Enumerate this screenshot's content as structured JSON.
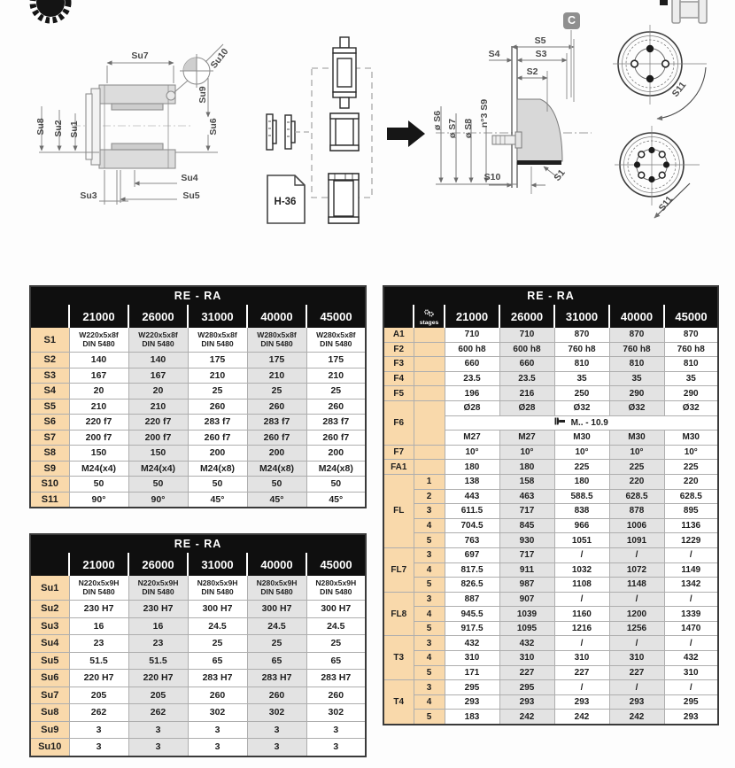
{
  "diagram": {
    "su": {
      "su1": "Su1",
      "su2": "Su2",
      "su3": "Su3",
      "su4": "Su4",
      "su5": "Su5",
      "su6": "Su6",
      "su7": "Su7",
      "su8": "Su8",
      "su9": "Su9",
      "su10": "Su10"
    },
    "s": {
      "badge": "C",
      "s1": "S1",
      "s2": "S2",
      "s3": "S3",
      "s4": "S4",
      "s5": "S5",
      "s6": "ø S6",
      "s7": "ø S7",
      "s8": "ø S8",
      "s9": "n°3 S9",
      "s10": "S10",
      "s11_top": "S11",
      "s11_bottom": "S11"
    },
    "document_label": "H-36"
  },
  "tables": {
    "s": {
      "title": "RE - RA",
      "columns": [
        "21000",
        "26000",
        "31000",
        "40000",
        "45000"
      ],
      "rows": [
        {
          "label": "S1",
          "values": [
            "W220x5x8f\nDIN 5480",
            "W220x5x8f\nDIN 5480",
            "W280x5x8f\nDIN 5480",
            "W280x5x8f\nDIN 5480",
            "W280x5x8f\nDIN 5480"
          ]
        },
        {
          "label": "S2",
          "values": [
            "140",
            "140",
            "175",
            "175",
            "175"
          ]
        },
        {
          "label": "S3",
          "values": [
            "167",
            "167",
            "210",
            "210",
            "210"
          ]
        },
        {
          "label": "S4",
          "values": [
            "20",
            "20",
            "25",
            "25",
            "25"
          ]
        },
        {
          "label": "S5",
          "values": [
            "210",
            "210",
            "260",
            "260",
            "260"
          ]
        },
        {
          "label": "S6",
          "values": [
            "220 f7",
            "220 f7",
            "283 f7",
            "283 f7",
            "283 f7"
          ]
        },
        {
          "label": "S7",
          "values": [
            "200 f7",
            "200 f7",
            "260 f7",
            "260 f7",
            "260 f7"
          ]
        },
        {
          "label": "S8",
          "values": [
            "150",
            "150",
            "200",
            "200",
            "200"
          ]
        },
        {
          "label": "S9",
          "values": [
            "M24(x4)",
            "M24(x4)",
            "M24(x8)",
            "M24(x8)",
            "M24(x8)"
          ]
        },
        {
          "label": "S10",
          "values": [
            "50",
            "50",
            "50",
            "50",
            "50"
          ]
        },
        {
          "label": "S11",
          "values": [
            "90°",
            "90°",
            "45°",
            "45°",
            "45°"
          ]
        }
      ]
    },
    "su": {
      "title": "RE - RA",
      "columns": [
        "21000",
        "26000",
        "31000",
        "40000",
        "45000"
      ],
      "rows": [
        {
          "label": "Su1",
          "values": [
            "N220x5x9H\nDIN 5480",
            "N220x5x9H\nDIN 5480",
            "N280x5x9H\nDIN 5480",
            "N280x5x9H\nDIN 5480",
            "N280x5x9H\nDIN 5480"
          ]
        },
        {
          "label": "Su2",
          "values": [
            "230 H7",
            "230 H7",
            "300 H7",
            "300 H7",
            "300 H7"
          ]
        },
        {
          "label": "Su3",
          "values": [
            "16",
            "16",
            "24.5",
            "24.5",
            "24.5"
          ]
        },
        {
          "label": "Su4",
          "values": [
            "23",
            "23",
            "25",
            "25",
            "25"
          ]
        },
        {
          "label": "Su5",
          "values": [
            "51.5",
            "51.5",
            "65",
            "65",
            "65"
          ]
        },
        {
          "label": "Su6",
          "values": [
            "220 H7",
            "220 H7",
            "283 H7",
            "283 H7",
            "283 H7"
          ]
        },
        {
          "label": "Su7",
          "values": [
            "205",
            "205",
            "260",
            "260",
            "260"
          ]
        },
        {
          "label": "Su8",
          "values": [
            "262",
            "262",
            "302",
            "302",
            "302"
          ]
        },
        {
          "label": "Su9",
          "values": [
            "3",
            "3",
            "3",
            "3",
            "3"
          ]
        },
        {
          "label": "Su10",
          "values": [
            "3",
            "3",
            "3",
            "3",
            "3"
          ]
        }
      ]
    },
    "main": {
      "title": "RE - RA",
      "stages_label": "stages",
      "columns": [
        "21000",
        "26000",
        "31000",
        "40000",
        "45000"
      ],
      "groups": [
        {
          "label": "A1",
          "rows": [
            {
              "stage": "",
              "values": [
                "710",
                "710",
                "870",
                "870",
                "870"
              ]
            }
          ]
        },
        {
          "label": "F2",
          "rows": [
            {
              "stage": "",
              "values": [
                "600 h8",
                "600 h8",
                "760 h8",
                "760 h8",
                "760 h8"
              ]
            }
          ]
        },
        {
          "label": "F3",
          "rows": [
            {
              "stage": "",
              "values": [
                "660",
                "660",
                "810",
                "810",
                "810"
              ]
            }
          ]
        },
        {
          "label": "F4",
          "rows": [
            {
              "stage": "",
              "values": [
                "23.5",
                "23.5",
                "35",
                "35",
                "35"
              ]
            }
          ]
        },
        {
          "label": "F5",
          "rows": [
            {
              "stage": "",
              "values": [
                "196",
                "216",
                "250",
                "290",
                "290"
              ]
            }
          ]
        },
        {
          "label": "F6",
          "f6": true,
          "rows": [
            {
              "values": [
                "Ø28",
                "Ø28",
                "Ø32",
                "Ø32",
                "Ø32"
              ]
            },
            {
              "note": "M.. - 10.9"
            },
            {
              "values": [
                "M27",
                "M27",
                "M30",
                "M30",
                "M30"
              ]
            }
          ]
        },
        {
          "label": "F7",
          "rows": [
            {
              "stage": "",
              "values": [
                "10°",
                "10°",
                "10°",
                "10°",
                "10°"
              ]
            }
          ]
        },
        {
          "label": "FA1",
          "rows": [
            {
              "stage": "",
              "values": [
                "180",
                "180",
                "225",
                "225",
                "225"
              ]
            }
          ]
        },
        {
          "label": "FL",
          "rows": [
            {
              "stage": "1",
              "values": [
                "138",
                "158",
                "180",
                "220",
                "220"
              ]
            },
            {
              "stage": "2",
              "values": [
                "443",
                "463",
                "588.5",
                "628.5",
                "628.5"
              ]
            },
            {
              "stage": "3",
              "values": [
                "611.5",
                "717",
                "838",
                "878",
                "895"
              ]
            },
            {
              "stage": "4",
              "values": [
                "704.5",
                "845",
                "966",
                "1006",
                "1136"
              ]
            },
            {
              "stage": "5",
              "values": [
                "763",
                "930",
                "1051",
                "1091",
                "1229"
              ]
            }
          ]
        },
        {
          "label": "FL7",
          "rows": [
            {
              "stage": "3",
              "values": [
                "697",
                "717",
                "/",
                "/",
                "/"
              ]
            },
            {
              "stage": "4",
              "values": [
                "817.5",
                "911",
                "1032",
                "1072",
                "1149"
              ]
            },
            {
              "stage": "5",
              "values": [
                "826.5",
                "987",
                "1108",
                "1148",
                "1342"
              ]
            }
          ]
        },
        {
          "label": "FL8",
          "rows": [
            {
              "stage": "3",
              "values": [
                "887",
                "907",
                "/",
                "/",
                "/"
              ]
            },
            {
              "stage": "4",
              "values": [
                "945.5",
                "1039",
                "1160",
                "1200",
                "1339"
              ]
            },
            {
              "stage": "5",
              "values": [
                "917.5",
                "1095",
                "1216",
                "1256",
                "1470"
              ]
            }
          ]
        },
        {
          "label": "T3",
          "rows": [
            {
              "stage": "3",
              "values": [
                "432",
                "432",
                "/",
                "/",
                "/"
              ]
            },
            {
              "stage": "4",
              "values": [
                "310",
                "310",
                "310",
                "310",
                "432"
              ]
            },
            {
              "stage": "5",
              "values": [
                "171",
                "227",
                "227",
                "227",
                "310"
              ]
            }
          ]
        },
        {
          "label": "T4",
          "rows": [
            {
              "stage": "3",
              "values": [
                "295",
                "295",
                "/",
                "/",
                "/"
              ]
            },
            {
              "stage": "4",
              "values": [
                "293",
                "293",
                "293",
                "293",
                "295"
              ]
            },
            {
              "stage": "5",
              "values": [
                "183",
                "242",
                "242",
                "242",
                "293"
              ]
            }
          ]
        }
      ]
    }
  }
}
